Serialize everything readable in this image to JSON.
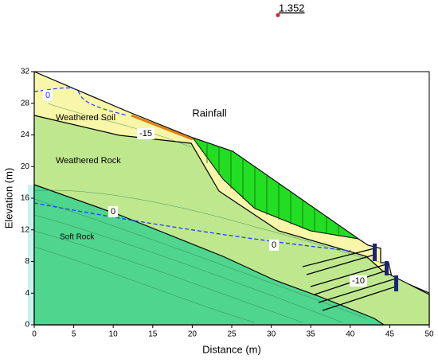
{
  "chart_data": {
    "type": "section",
    "xlabel": "Distance (m)",
    "ylabel": "Elevation (m)",
    "xlim": [
      0,
      50
    ],
    "xticks": [
      0,
      5,
      10,
      15,
      20,
      25,
      30,
      35,
      40,
      45,
      50
    ],
    "ylim": [
      0,
      32
    ],
    "yticks": [
      0,
      4,
      8,
      12,
      16,
      20,
      24,
      28,
      32
    ],
    "annotations": [
      "1.352",
      "Rainfall",
      "Weathered Soil",
      "Weathered Rock",
      "Soft Rock",
      "0",
      "-15",
      "0",
      "0",
      "-10"
    ]
  }
}
